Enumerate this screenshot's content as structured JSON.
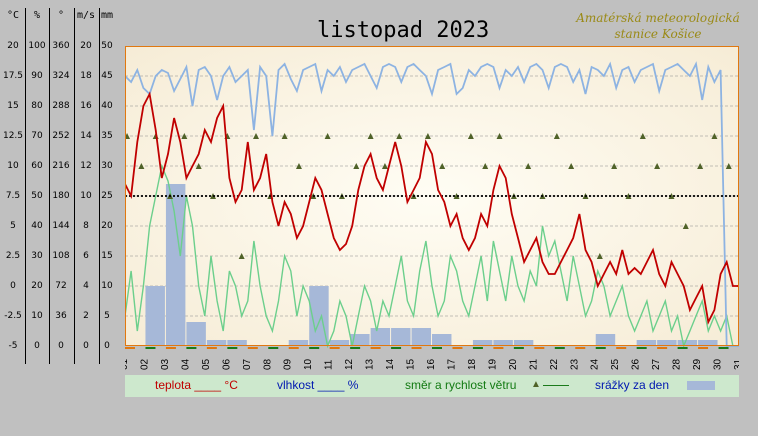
{
  "title": "listopad 2023",
  "station": [
    "Amatérská meteorologická",
    "stanice Košice"
  ],
  "units": [
    "°C",
    "%",
    "°",
    "m/s",
    "mm"
  ],
  "tick_labels": [
    [
      "20",
      "17.5",
      "15",
      "12.5",
      "10",
      "7.5",
      "5",
      "2.5",
      "0",
      "-2.5",
      "-5"
    ],
    [
      "100",
      "90",
      "80",
      "70",
      "60",
      "50",
      "40",
      "30",
      "20",
      "10",
      "0"
    ],
    [
      "360",
      "324",
      "288",
      "252",
      "216",
      "180",
      "144",
      "108",
      "72",
      "36",
      "0"
    ],
    [
      "20",
      "18",
      "16",
      "14",
      "12",
      "10",
      "8",
      "6",
      "4",
      "2",
      "0"
    ],
    [
      "50",
      "45",
      "40",
      "35",
      "30",
      "25",
      "20",
      "15",
      "10",
      "5",
      "0"
    ]
  ],
  "days": [
    "01",
    "02",
    "03",
    "04",
    "05",
    "06",
    "07",
    "08",
    "09",
    "10",
    "11",
    "12",
    "13",
    "14",
    "15",
    "16",
    "17",
    "18",
    "19",
    "20",
    "21",
    "22",
    "23",
    "24",
    "25",
    "26",
    "27",
    "28",
    "29",
    "30",
    "31"
  ],
  "legend": {
    "temperature": "teplota ____ °C",
    "humidity": "vlhkost ____ %",
    "wind": "směr a rychlost větru",
    "precip": "srážky za den"
  },
  "colors": {
    "temperature": "#c00000",
    "humidity": "#8db3e2",
    "wind_speed": "#6ccf8c",
    "wind_direction": "#4f6228",
    "precipitation": "#a6b8d8",
    "plot_background": "#f6ecd6",
    "frame": "#e07810"
  },
  "chart_data": {
    "type": "line",
    "x_unit": "day of November 2023",
    "xlim": [
      1,
      31
    ],
    "series": [
      {
        "name": "teplota",
        "unit": "°C",
        "axis_range": [
          -5,
          20
        ],
        "x": [
          1,
          1.3,
          1.6,
          1.9,
          2.2,
          2.5,
          2.8,
          3.1,
          3.4,
          3.7,
          4,
          4.3,
          4.6,
          4.9,
          5.2,
          5.5,
          5.8,
          6.1,
          6.4,
          6.7,
          7,
          7.3,
          7.6,
          7.9,
          8.2,
          8.5,
          8.8,
          9.1,
          9.4,
          9.7,
          10,
          10.3,
          10.6,
          10.9,
          11.2,
          11.5,
          11.8,
          12.1,
          12.4,
          12.7,
          13,
          13.3,
          13.6,
          13.9,
          14.2,
          14.5,
          14.8,
          15.1,
          15.4,
          15.7,
          16,
          16.3,
          16.6,
          16.9,
          17.2,
          17.5,
          17.8,
          18.1,
          18.4,
          18.7,
          19,
          19.3,
          19.6,
          19.9,
          20.2,
          20.5,
          20.8,
          21.1,
          21.4,
          21.7,
          22,
          22.3,
          22.6,
          22.9,
          23.2,
          23.5,
          23.8,
          24.1,
          24.4,
          24.7,
          25,
          25.3,
          25.6,
          25.9,
          26.2,
          26.5,
          26.8,
          27.1,
          27.4,
          27.7,
          28,
          28.3,
          28.6,
          28.9,
          29.2,
          29.5,
          29.8,
          30.1,
          30.4,
          30.7,
          31
        ],
        "values": [
          8.5,
          7.5,
          12,
          15,
          16,
          13,
          9,
          11,
          14,
          12,
          9,
          10,
          11,
          13,
          12,
          14,
          15,
          9,
          7,
          8,
          12,
          8,
          9,
          11,
          7,
          5,
          7,
          6,
          4,
          5,
          7,
          9,
          8,
          6,
          4,
          3,
          3.5,
          5,
          8,
          10,
          11,
          9,
          8,
          10,
          12,
          10,
          7,
          8,
          9,
          12,
          11,
          8,
          7,
          5,
          6,
          4,
          3,
          4,
          6,
          5,
          8,
          10,
          9,
          6,
          4,
          2,
          3,
          4,
          2,
          1,
          1,
          2,
          3,
          4,
          6,
          3,
          2,
          0,
          1,
          2,
          1,
          3,
          1,
          1.5,
          1,
          2,
          3,
          1,
          0,
          2,
          1,
          0,
          -2,
          -1,
          0,
          -3,
          -2,
          1,
          2,
          0,
          0
        ]
      },
      {
        "name": "vlhkost",
        "unit": "%",
        "axis_range": [
          0,
          100
        ],
        "x": [
          1,
          1.3,
          1.6,
          1.9,
          2.2,
          2.5,
          2.8,
          3.1,
          3.4,
          3.7,
          4,
          4.3,
          4.6,
          4.9,
          5.2,
          5.5,
          5.8,
          6.1,
          6.4,
          6.7,
          7,
          7.3,
          7.6,
          7.9,
          8.2,
          8.5,
          8.8,
          9.1,
          9.4,
          9.7,
          10,
          10.3,
          10.6,
          10.9,
          11.2,
          11.5,
          11.8,
          12.1,
          12.4,
          12.7,
          13,
          13.3,
          13.6,
          13.9,
          14.2,
          14.5,
          14.8,
          15.1,
          15.4,
          15.7,
          16,
          16.3,
          16.6,
          16.9,
          17.2,
          17.5,
          17.8,
          18.1,
          18.4,
          18.7,
          19,
          19.3,
          19.6,
          19.9,
          20.2,
          20.5,
          20.8,
          21.1,
          21.4,
          21.7,
          22,
          22.3,
          22.6,
          22.9,
          23.2,
          23.5,
          23.8,
          24.1,
          24.4,
          24.7,
          25,
          25.3,
          25.6,
          25.9,
          26.2,
          26.5,
          26.8,
          27.1,
          27.4,
          27.7,
          28,
          28.3,
          28.6,
          28.9,
          29.2,
          29.5,
          29.8,
          30.1,
          30.4,
          30.7,
          31
        ],
        "values": [
          90,
          88,
          92,
          86,
          84,
          90,
          92,
          91,
          85,
          89,
          93,
          80,
          92,
          93,
          90,
          82,
          90,
          93,
          88,
          90,
          92,
          72,
          93,
          90,
          70,
          92,
          94,
          89,
          85,
          92,
          93,
          94,
          85,
          92,
          90,
          93,
          88,
          92,
          93,
          94,
          90,
          86,
          93,
          94,
          93,
          88,
          93,
          94,
          92,
          90,
          84,
          92,
          93,
          94,
          84,
          86,
          92,
          90,
          93,
          94,
          93,
          86,
          92,
          90,
          93,
          88,
          93,
          94,
          92,
          86,
          93,
          94,
          93,
          88,
          92,
          84,
          93,
          92,
          90,
          94,
          86,
          92,
          93,
          88,
          92,
          93,
          94,
          85,
          92,
          93,
          94,
          92,
          90,
          94,
          82,
          93,
          88,
          92,
          0,
          0,
          0
        ]
      },
      {
        "name": "rychlost větru",
        "unit": "m/s",
        "axis_range": [
          0,
          20
        ],
        "x": [
          1,
          1.3,
          1.6,
          1.9,
          2.2,
          2.5,
          2.8,
          3.1,
          3.4,
          3.7,
          4,
          4.3,
          4.6,
          4.9,
          5.2,
          5.5,
          5.8,
          6.1,
          6.4,
          6.7,
          7,
          7.3,
          7.6,
          7.9,
          8.2,
          8.5,
          8.8,
          9.1,
          9.4,
          9.7,
          10,
          10.3,
          10.6,
          10.9,
          11.2,
          11.5,
          11.8,
          12.1,
          12.4,
          12.7,
          13,
          13.3,
          13.6,
          13.9,
          14.2,
          14.5,
          14.8,
          15.1,
          15.4,
          15.7,
          16,
          16.3,
          16.6,
          16.9,
          17.2,
          17.5,
          17.8,
          18.1,
          18.4,
          18.7,
          19,
          19.3,
          19.6,
          19.9,
          20.2,
          20.5,
          20.8,
          21.1,
          21.4,
          21.7,
          22,
          22.3,
          22.6,
          22.9,
          23.2,
          23.5,
          23.8,
          24.1,
          24.4,
          24.7,
          25,
          25.3,
          25.6,
          25.9,
          26.2,
          26.5,
          26.8,
          27.1,
          27.4,
          27.7,
          28,
          28.3,
          28.6,
          28.9,
          29.2,
          29.5,
          29.8,
          30.1,
          30.4,
          30.7,
          31
        ],
        "values": [
          2,
          5,
          1,
          4,
          8,
          10,
          12,
          11,
          9,
          6,
          10,
          8,
          4,
          2,
          6,
          3,
          1,
          5,
          4,
          2,
          3,
          7,
          4,
          2,
          1,
          3,
          6,
          5,
          2,
          4,
          3,
          1,
          2,
          0,
          1,
          3,
          2,
          0,
          2,
          4,
          3,
          1,
          3,
          2,
          4,
          6,
          3,
          2,
          5,
          7,
          4,
          2,
          3,
          6,
          5,
          3,
          2,
          4,
          6,
          3,
          7,
          5,
          3,
          6,
          4,
          3,
          5,
          4,
          8,
          6,
          7,
          5,
          3,
          6,
          4,
          2,
          3,
          5,
          4,
          2,
          3,
          4,
          2,
          1,
          2,
          3,
          1,
          2,
          3,
          1,
          2,
          0,
          1,
          2,
          3,
          1,
          2,
          1,
          2,
          0,
          0
        ]
      },
      {
        "name": "směr větru",
        "unit": "°",
        "axis_range": [
          0,
          360
        ],
        "x": [
          1.1,
          1.8,
          2.5,
          3.2,
          3.9,
          4.6,
          5.3,
          6,
          6.7,
          7.4,
          8.1,
          8.8,
          9.5,
          10.2,
          10.9,
          11.6,
          12.3,
          13,
          13.7,
          14.4,
          15.1,
          15.8,
          16.5,
          17.2,
          17.9,
          18.6,
          19.3,
          20,
          20.7,
          21.4,
          22.1,
          22.8,
          23.5,
          24.2,
          24.9,
          25.6,
          26.3,
          27,
          27.7,
          28.4,
          29.1,
          29.8,
          30.5
        ],
        "values": [
          252,
          216,
          252,
          180,
          252,
          216,
          180,
          252,
          108,
          252,
          180,
          252,
          216,
          180,
          252,
          180,
          216,
          252,
          216,
          252,
          180,
          252,
          216,
          180,
          252,
          216,
          252,
          180,
          216,
          180,
          252,
          216,
          180,
          108,
          216,
          180,
          252,
          216,
          180,
          144,
          216,
          252,
          216
        ]
      },
      {
        "name": "srážky",
        "unit": "mm",
        "axis_range": [
          0,
          50
        ],
        "x": [
          1,
          2,
          3,
          4,
          5,
          6,
          7,
          8,
          9,
          10,
          11,
          12,
          13,
          14,
          15,
          16,
          17,
          18,
          19,
          20,
          21,
          22,
          23,
          24,
          25,
          26,
          27,
          28,
          29,
          30
        ],
        "values": [
          0,
          10,
          27,
          4,
          1,
          1,
          0,
          0,
          1,
          10,
          1,
          2,
          3,
          3,
          3,
          2,
          0,
          1,
          1,
          1,
          0,
          0,
          0,
          2,
          0,
          1,
          1,
          1,
          1,
          0
        ]
      }
    ],
    "reference_lines": [
      {
        "axis": "°C",
        "value": 7.5,
        "style": "dotted"
      }
    ],
    "end_marker": {
      "axis": "°C",
      "value": 0
    },
    "grid": "horizontal dashed"
  }
}
